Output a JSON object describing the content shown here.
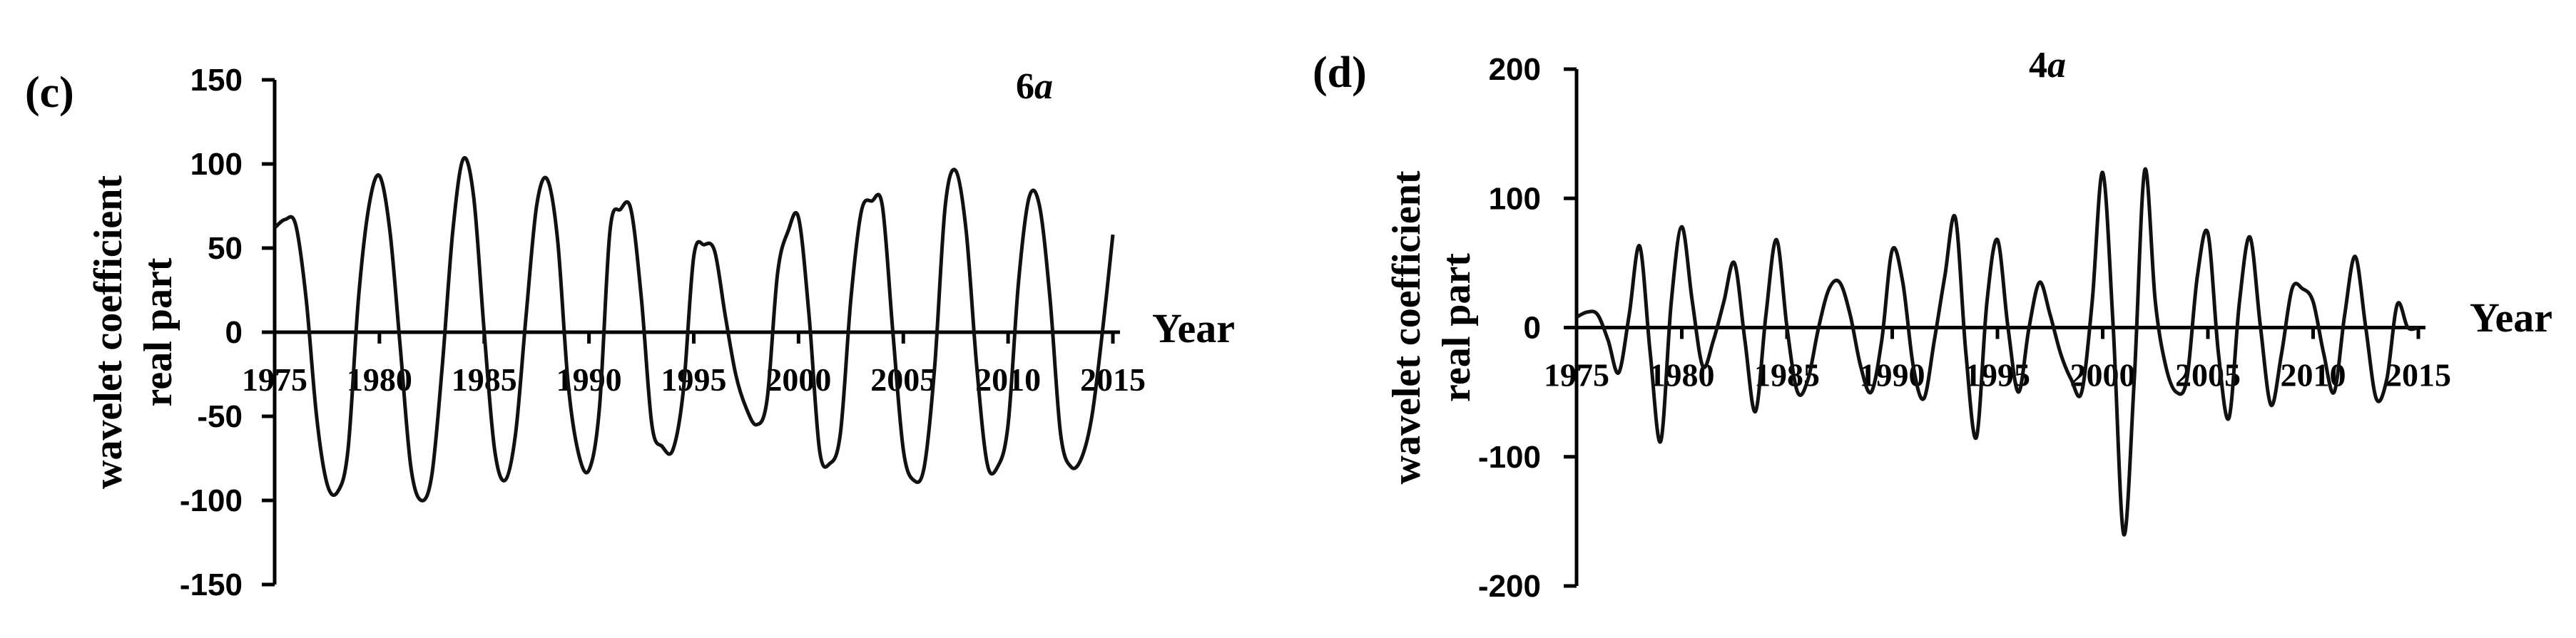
{
  "chart_data": [
    {
      "type": "line",
      "panel_label": "(c)",
      "title_number": "6",
      "title_var": "a",
      "ylabel_line1": "wavelet coefficient",
      "ylabel_line2": "real part",
      "xlabel": "Year",
      "xlim": [
        1975,
        2015
      ],
      "ylim": [
        -150,
        150
      ],
      "yticks": [
        150,
        100,
        50,
        0,
        -50,
        -100,
        -150
      ],
      "xticks": [
        1975,
        1980,
        1985,
        1990,
        1995,
        2000,
        2005,
        2010,
        2015
      ],
      "grid": false,
      "x": [
        1975,
        1975.5,
        1976,
        1976.5,
        1977,
        1977.5,
        1978,
        1978.5,
        1979,
        1979.5,
        1980,
        1980.5,
        1981,
        1981.5,
        1982,
        1982.5,
        1983,
        1983.5,
        1984,
        1984.5,
        1985,
        1985.5,
        1986,
        1986.5,
        1987,
        1987.5,
        1988,
        1988.5,
        1989,
        1989.5,
        1990,
        1990.5,
        1991,
        1991.5,
        1992,
        1992.5,
        1993,
        1993.5,
        1994,
        1994.5,
        1995,
        1995.5,
        1996,
        1996.5,
        1997,
        1997.5,
        1998,
        1998.5,
        1999,
        1999.5,
        2000,
        2000.5,
        2001,
        2001.5,
        2002,
        2002.5,
        2003,
        2003.5,
        2004,
        2004.5,
        2005,
        2005.5,
        2006,
        2006.5,
        2007,
        2007.5,
        2008,
        2008.5,
        2009,
        2009.5,
        2010,
        2010.5,
        2011,
        2011.5,
        2012,
        2012.5,
        2013,
        2013.5,
        2014,
        2014.5,
        2015
      ],
      "y": [
        62,
        67,
        64,
        20,
        -50,
        -90,
        -95,
        -70,
        20,
        75,
        93,
        60,
        -10,
        -80,
        -100,
        -85,
        -20,
        60,
        103,
        80,
        0,
        -70,
        -88,
        -60,
        10,
        75,
        91,
        55,
        -30,
        -72,
        -82,
        -45,
        60,
        73,
        73,
        20,
        -55,
        -68,
        -70,
        -35,
        45,
        52,
        48,
        10,
        -25,
        -45,
        -55,
        -40,
        35,
        60,
        68,
        10,
        -70,
        -78,
        -60,
        20,
        72,
        78,
        75,
        0,
        -70,
        -88,
        -80,
        -20,
        75,
        96,
        60,
        -20,
        -78,
        -80,
        -55,
        30,
        80,
        75,
        20,
        -60,
        -80,
        -75,
        -50,
        0,
        58
      ]
    },
    {
      "type": "line",
      "panel_label": "(d)",
      "title_number": "4",
      "title_var": "a",
      "ylabel_line1": "wavelet coefficient",
      "ylabel_line2": "real part",
      "xlabel": "Year",
      "xlim": [
        1975,
        2015
      ],
      "ylim": [
        -200,
        200
      ],
      "yticks": [
        200,
        100,
        0,
        -100,
        -200
      ],
      "xticks": [
        1975,
        1980,
        1985,
        1990,
        1995,
        2000,
        2005,
        2010,
        2015
      ],
      "grid": false,
      "x": [
        1975,
        1975.5,
        1976,
        1976.5,
        1977,
        1977.5,
        1978,
        1978.5,
        1979,
        1979.5,
        1980,
        1980.5,
        1981,
        1981.5,
        1982,
        1982.5,
        1983,
        1983.5,
        1984,
        1984.5,
        1985,
        1985.5,
        1986,
        1986.5,
        1987,
        1987.5,
        1988,
        1988.5,
        1989,
        1989.5,
        1990,
        1990.5,
        1991,
        1991.5,
        1992,
        1992.5,
        1993,
        1993.5,
        1994,
        1994.5,
        1995,
        1995.5,
        1996,
        1996.5,
        1997,
        1997.5,
        1998,
        1998.5,
        1999,
        1999.5,
        2000,
        2000.5,
        2001,
        2001.5,
        2002,
        2002.5,
        2003,
        2003.5,
        2004,
        2004.5,
        2005,
        2005.5,
        2006,
        2006.5,
        2007,
        2007.5,
        2008,
        2008.5,
        2009,
        2009.5,
        2010,
        2010.5,
        2011,
        2011.5,
        2012,
        2012.5,
        2013,
        2013.5,
        2014,
        2014.5,
        2015
      ],
      "y": [
        8,
        12,
        10,
        -10,
        -35,
        10,
        63,
        -20,
        -88,
        20,
        78,
        20,
        -30,
        -10,
        20,
        50,
        -10,
        -65,
        10,
        68,
        0,
        -50,
        -40,
        0,
        30,
        35,
        10,
        -30,
        -50,
        -10,
        60,
        35,
        -30,
        -55,
        -10,
        40,
        85,
        -20,
        -85,
        20,
        68,
        0,
        -50,
        0,
        35,
        10,
        -20,
        -40,
        -50,
        20,
        120,
        0,
        -160,
        -40,
        122,
        20,
        -30,
        -50,
        -40,
        40,
        73,
        -20,
        -70,
        20,
        70,
        0,
        -60,
        -20,
        30,
        30,
        20,
        -20,
        -50,
        10,
        55,
        0,
        -55,
        -40,
        18,
        0,
        0
      ]
    }
  ]
}
